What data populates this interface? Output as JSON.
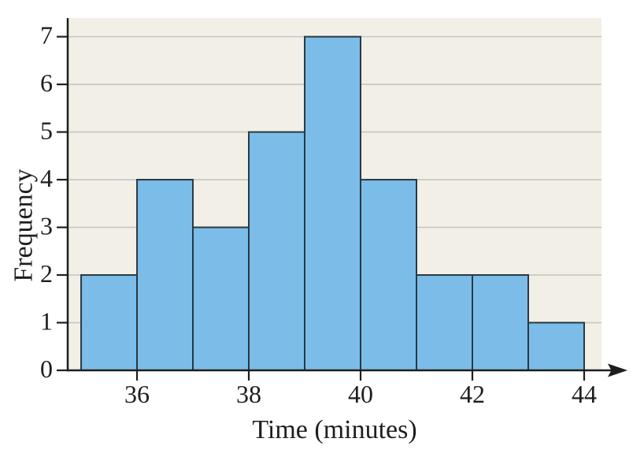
{
  "chart_data": {
    "type": "bar",
    "subtype": "histogram",
    "title": "",
    "xlabel": "Time (minutes)",
    "ylabel": "Frequency",
    "bin_edges": [
      35,
      36,
      37,
      38,
      39,
      40,
      41,
      42,
      43,
      44
    ],
    "frequencies": [
      2,
      4,
      3,
      5,
      7,
      4,
      2,
      2,
      1
    ],
    "x_ticks": [
      {
        "value": 36,
        "label": "36"
      },
      {
        "value": 38,
        "label": "38"
      },
      {
        "value": 40,
        "label": "40"
      },
      {
        "value": 42,
        "label": "42"
      },
      {
        "value": 44,
        "label": "44"
      }
    ],
    "y_ticks": [
      {
        "value": 0,
        "label": "0"
      },
      {
        "value": 1,
        "label": "1"
      },
      {
        "value": 2,
        "label": "2"
      },
      {
        "value": 3,
        "label": "3"
      },
      {
        "value": 4,
        "label": "4"
      },
      {
        "value": 5,
        "label": "5"
      },
      {
        "value": 6,
        "label": "6"
      },
      {
        "value": 7,
        "label": "7"
      }
    ],
    "xlim": [
      34.76,
      44.31
    ],
    "ylim": [
      0,
      7.39
    ],
    "grid": "horizontal-y-lines",
    "legend": "none",
    "x_axis_arrow": "right",
    "colors": {
      "bar_fill": "#7bbde8",
      "bar_stroke": "#2a3842",
      "plot_background": "#f2efe7",
      "gridline": "#c9c6c0",
      "axis": "#1e1e1e",
      "text": "#1e1e1e",
      "page_background": "#ffffff"
    }
  }
}
